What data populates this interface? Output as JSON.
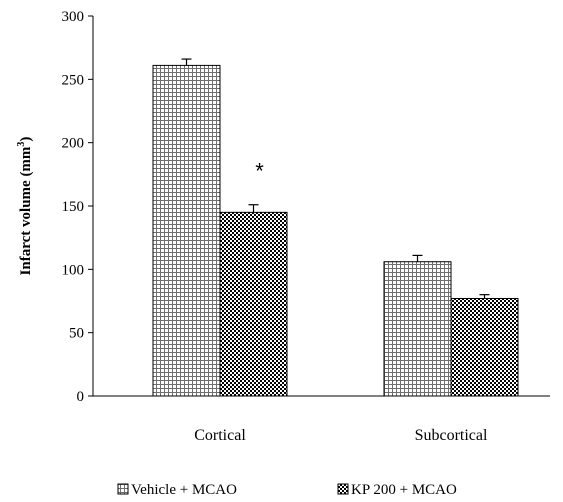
{
  "chart_data": {
    "type": "bar",
    "categories": [
      "Cortical",
      "Subcortical"
    ],
    "series": [
      {
        "name": "Vehicle + MCAO",
        "values": [
          261,
          106
        ],
        "errors": [
          5,
          5
        ],
        "pattern": "grid"
      },
      {
        "name": "KP 200  + MCAO",
        "values": [
          145,
          77
        ],
        "errors": [
          6,
          3
        ],
        "pattern": "checker"
      }
    ],
    "ylabel": "Infarct volume (mm",
    "ylabel_sup": "3",
    "ylabel_close": ")",
    "ylim": [
      0,
      300
    ],
    "yticks": [
      0,
      50,
      100,
      150,
      200,
      250,
      300
    ],
    "annotations": [
      {
        "text": "*",
        "category": "Cortical",
        "series": 1
      }
    ],
    "legend": "bottom",
    "grid": false
  }
}
